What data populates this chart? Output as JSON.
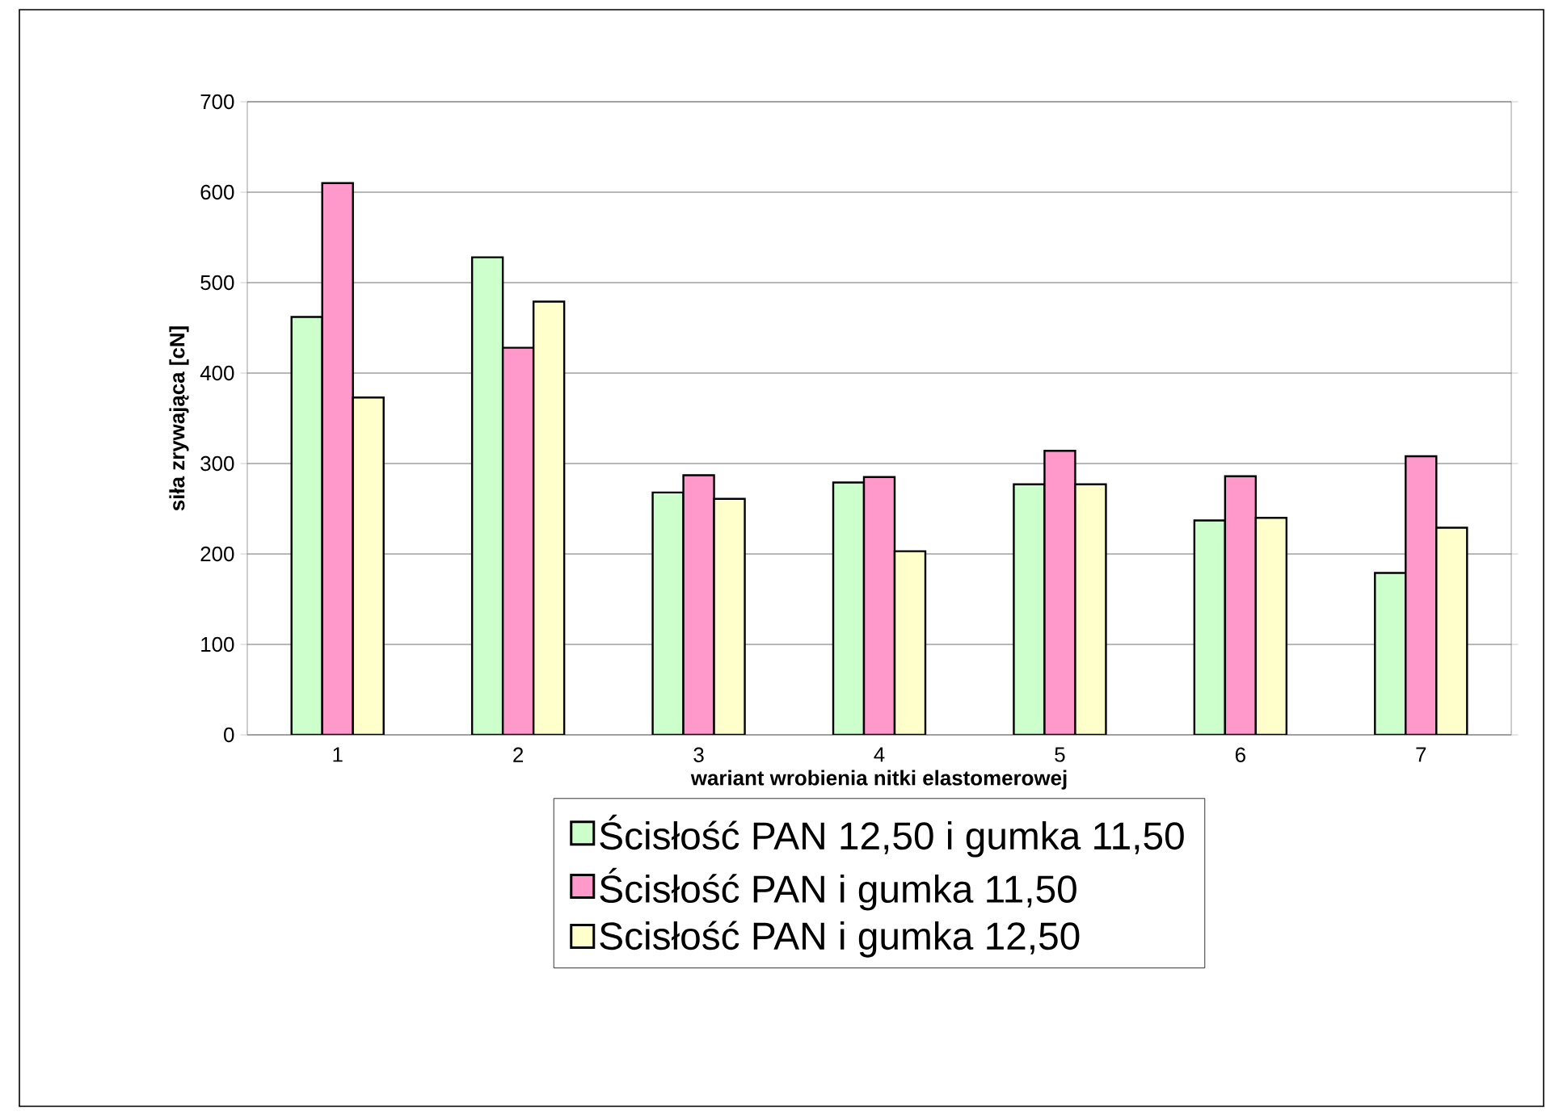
{
  "chart_data": {
    "type": "bar",
    "xlabel": "wariant wrobienia nitki elastomerowej",
    "ylabel": "siła zrywająca [cN]",
    "categories": [
      "1",
      "2",
      "3",
      "4",
      "5",
      "6",
      "7"
    ],
    "series": [
      {
        "name": "Ścisłość PAN 12,50 i gumka 11,50",
        "color": "#ccffcc",
        "values": [
          462,
          528,
          268,
          279,
          277,
          237,
          179
        ]
      },
      {
        "name": "Ścisłość PAN i gumka 11,50",
        "color": "#ff99cc",
        "values": [
          610,
          428,
          287,
          285,
          314,
          286,
          308
        ]
      },
      {
        "name": "Scisłość PAN i gumka 12,50",
        "color": "#ffffcc",
        "values": [
          373,
          479,
          261,
          203,
          277,
          240,
          229
        ]
      }
    ],
    "ylim": [
      0,
      700
    ],
    "yticks": [
      0,
      100,
      200,
      300,
      400,
      500,
      600,
      700
    ],
    "grid": "y",
    "legend": "bottom"
  }
}
